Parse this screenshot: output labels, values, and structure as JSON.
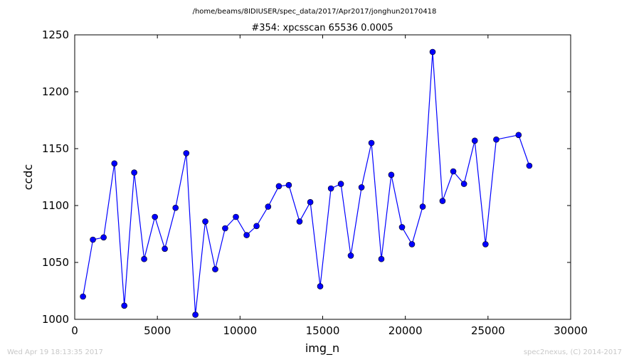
{
  "chart_data": {
    "type": "line",
    "suptitle": "/home/beams/8IDIUSER/spec_data/2017/Apr2017/jonghun20170418",
    "title": "#354: xpcsscan 65536 0.0005",
    "xlabel": "img_n",
    "ylabel": "ccdc",
    "xlim": [
      0,
      30000
    ],
    "ylim": [
      1000,
      1250
    ],
    "xticks": [
      0,
      5000,
      10000,
      15000,
      20000,
      25000,
      30000
    ],
    "yticks": [
      1000,
      1050,
      1100,
      1150,
      1200,
      1250
    ],
    "grid": false,
    "line_color": "#0000ff",
    "marker": "circle",
    "series": [
      {
        "x": [
          500,
          1100,
          1750,
          2400,
          3000,
          3600,
          4200,
          4850,
          5450,
          6100,
          6750,
          7300,
          7900,
          8500,
          9100,
          9750,
          10400,
          11000,
          11700,
          12350,
          12950,
          13600,
          14250,
          14850,
          15500,
          16100,
          16700,
          17350,
          17950,
          18550,
          19150,
          19800,
          20400,
          21050,
          21650,
          22250,
          22900,
          23550,
          24200,
          24850,
          25500,
          26850,
          27500
        ],
        "y": [
          1020,
          1070,
          1072,
          1137,
          1012,
          1129,
          1053,
          1090,
          1062,
          1098,
          1146,
          1004,
          1086,
          1044,
          1080,
          1090,
          1074,
          1082,
          1099,
          1117,
          1118,
          1086,
          1103,
          1029,
          1115,
          1119,
          1056,
          1116,
          1155,
          1053,
          1127,
          1081,
          1066,
          1099,
          1235,
          1104,
          1130,
          1119,
          1157,
          1066,
          1158,
          1162,
          1135
        ]
      }
    ]
  },
  "footer": {
    "left": "Wed Apr 19 18:13:35 2017",
    "right": "spec2nexus, (C) 2014-2017"
  }
}
